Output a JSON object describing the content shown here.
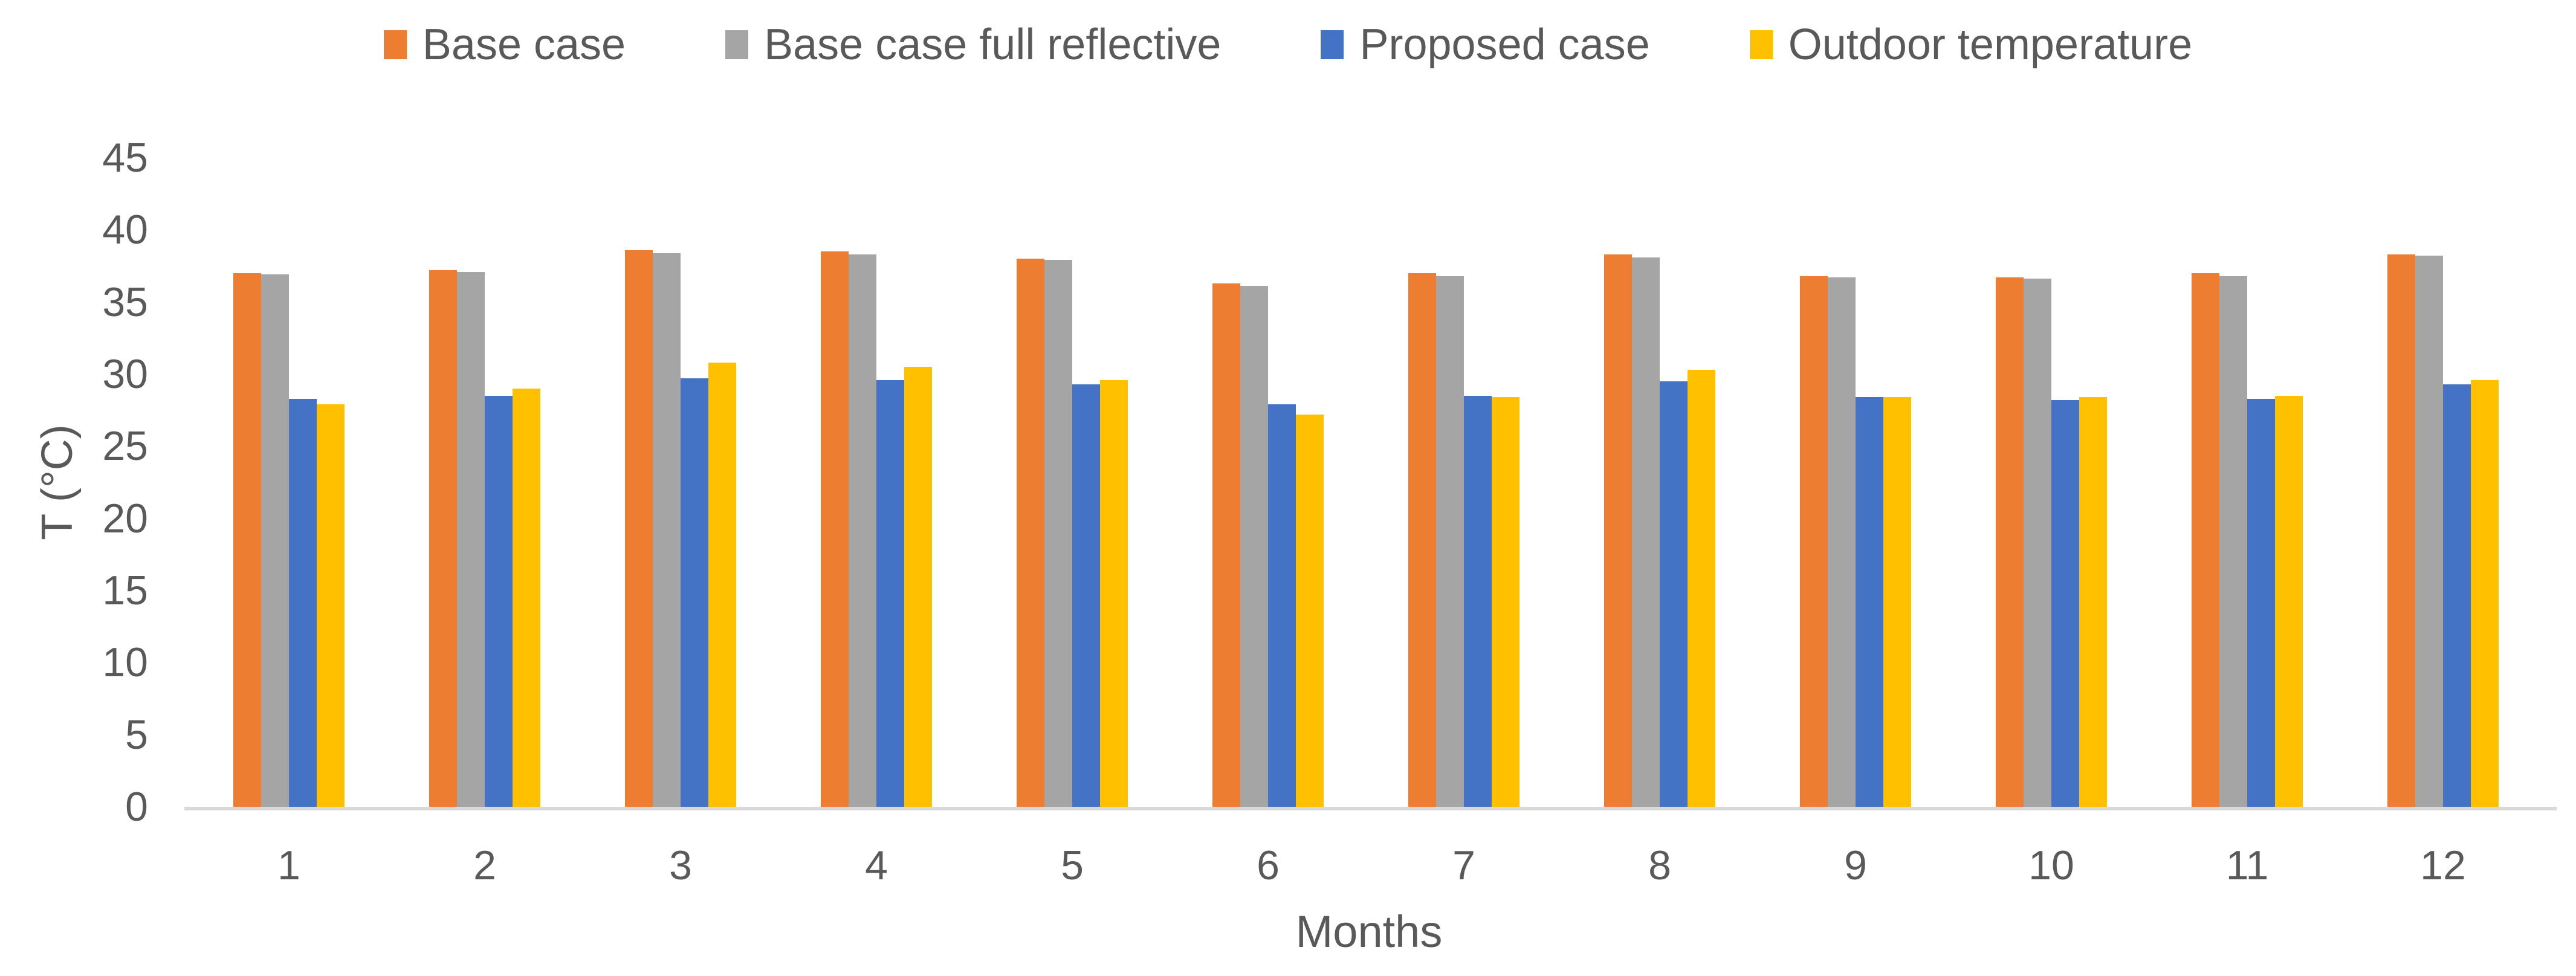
{
  "chart_data": {
    "type": "bar",
    "title": "",
    "categories": [
      "1",
      "2",
      "3",
      "4",
      "5",
      "6",
      "7",
      "8",
      "9",
      "10",
      "11",
      "12"
    ],
    "series": [
      {
        "name": "Base case",
        "color": "#ED7D31",
        "values": [
          37.0,
          37.2,
          38.6,
          38.5,
          38.0,
          36.3,
          37.0,
          38.3,
          36.8,
          36.7,
          37.0,
          38.3
        ]
      },
      {
        "name": "Base case full reflective",
        "color": "#A5A5A5",
        "values": [
          36.9,
          37.1,
          38.4,
          38.3,
          37.9,
          36.1,
          36.8,
          38.1,
          36.7,
          36.6,
          36.8,
          38.2
        ]
      },
      {
        "name": "Proposed case",
        "color": "#4472C4",
        "values": [
          28.3,
          28.5,
          29.7,
          29.6,
          29.3,
          27.9,
          28.5,
          29.5,
          28.4,
          28.2,
          28.3,
          29.3
        ]
      },
      {
        "name": "Outdoor temperature",
        "color": "#FFC000",
        "values": [
          27.9,
          29.0,
          30.8,
          30.5,
          29.6,
          27.2,
          28.4,
          30.3,
          28.4,
          28.4,
          28.5,
          29.6
        ]
      }
    ],
    "xlabel": "Months",
    "ylabel": "T (°C)",
    "ylim": [
      0,
      45
    ],
    "ytick_step": 5,
    "yticks": [
      0,
      5,
      10,
      15,
      20,
      25,
      30,
      35,
      40,
      45
    ],
    "legend_position": "top",
    "grid": false
  },
  "colors": {
    "text": "#595959",
    "axis_line": "#D9D9D9",
    "background": "#FFFFFF"
  }
}
